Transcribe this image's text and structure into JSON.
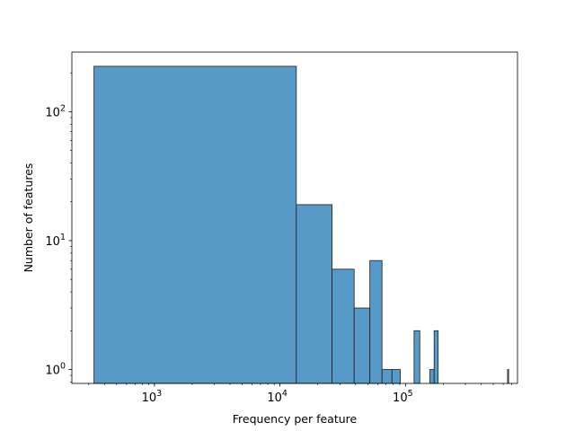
{
  "chart_data": {
    "type": "bar",
    "title": "",
    "xlabel": "Frequency per feature",
    "ylabel": "Number of features",
    "x_scale": "log",
    "y_scale": "log",
    "xlim": [
      220,
      780000
    ],
    "ylim": [
      0.78,
      290
    ],
    "grid": false,
    "bar_color": "#5799c7",
    "edge_color": "#1f1f1f",
    "x_ticks": [
      {
        "value": 1000,
        "base": "10",
        "exp": "3"
      },
      {
        "value": 10000,
        "base": "10",
        "exp": "4"
      },
      {
        "value": 100000,
        "base": "10",
        "exp": "5"
      }
    ],
    "y_ticks": [
      {
        "value": 1,
        "base": "10",
        "exp": "0"
      },
      {
        "value": 10,
        "base": "10",
        "exp": "1"
      },
      {
        "value": 100,
        "base": "10",
        "exp": "2"
      }
    ],
    "bins": [
      {
        "x0": 330,
        "x1": 13500,
        "count": 225
      },
      {
        "x0": 13500,
        "x1": 26000,
        "count": 19
      },
      {
        "x0": 26000,
        "x1": 39000,
        "count": 6
      },
      {
        "x0": 39000,
        "x1": 52000,
        "count": 3
      },
      {
        "x0": 52000,
        "x1": 65000,
        "count": 7
      },
      {
        "x0": 65000,
        "x1": 78000,
        "count": 1
      },
      {
        "x0": 78000,
        "x1": 91000,
        "count": 1
      },
      {
        "x0": 117000,
        "x1": 130000,
        "count": 2
      },
      {
        "x0": 156000,
        "x1": 169000,
        "count": 1
      },
      {
        "x0": 169000,
        "x1": 182000,
        "count": 2
      },
      {
        "x0": 650000,
        "x1": 663000,
        "count": 1
      }
    ]
  }
}
